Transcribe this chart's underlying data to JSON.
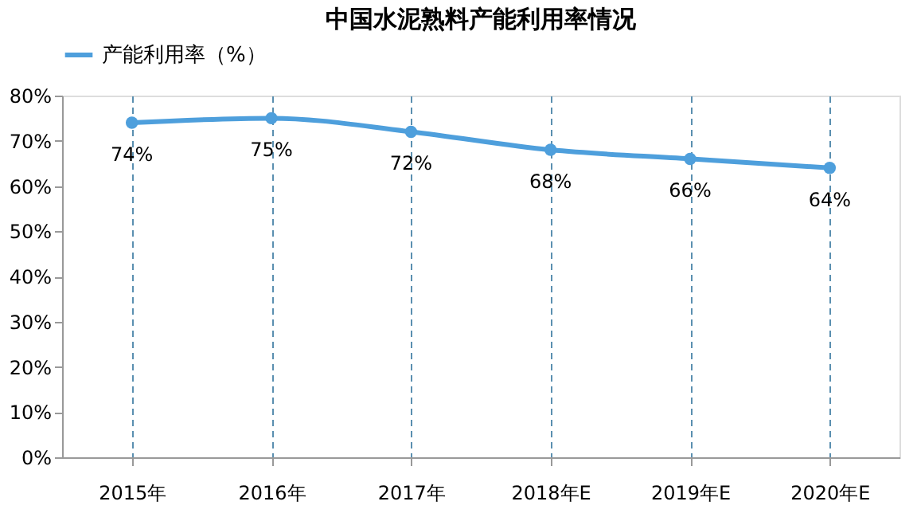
{
  "chart_data": {
    "type": "line",
    "title": "中国水泥熟料产能利用率情况",
    "categories": [
      "2015年",
      "2016年",
      "2017年",
      "2018年E",
      "2019年E",
      "2020年E"
    ],
    "series": [
      {
        "name": "产能利用率（%）",
        "color": "#4e9fdc",
        "values": [
          74,
          75,
          72,
          68,
          66,
          64
        ],
        "value_labels": [
          "74%",
          "75%",
          "72%",
          "68%",
          "66%",
          "64%"
        ]
      }
    ],
    "ylim": [
      0,
      80
    ],
    "yticks": [
      {
        "value": 0,
        "label": "0%"
      },
      {
        "value": 10,
        "label": "10%"
      },
      {
        "value": 20,
        "label": "20%"
      },
      {
        "value": 30,
        "label": "30%"
      },
      {
        "value": 40,
        "label": "40%"
      },
      {
        "value": 50,
        "label": "50%"
      },
      {
        "value": 60,
        "label": "60%"
      },
      {
        "value": 70,
        "label": "70%"
      },
      {
        "value": 80,
        "label": "80%"
      }
    ],
    "grid": "x",
    "legend": "top",
    "marker": "circle",
    "line_style": "solid"
  }
}
